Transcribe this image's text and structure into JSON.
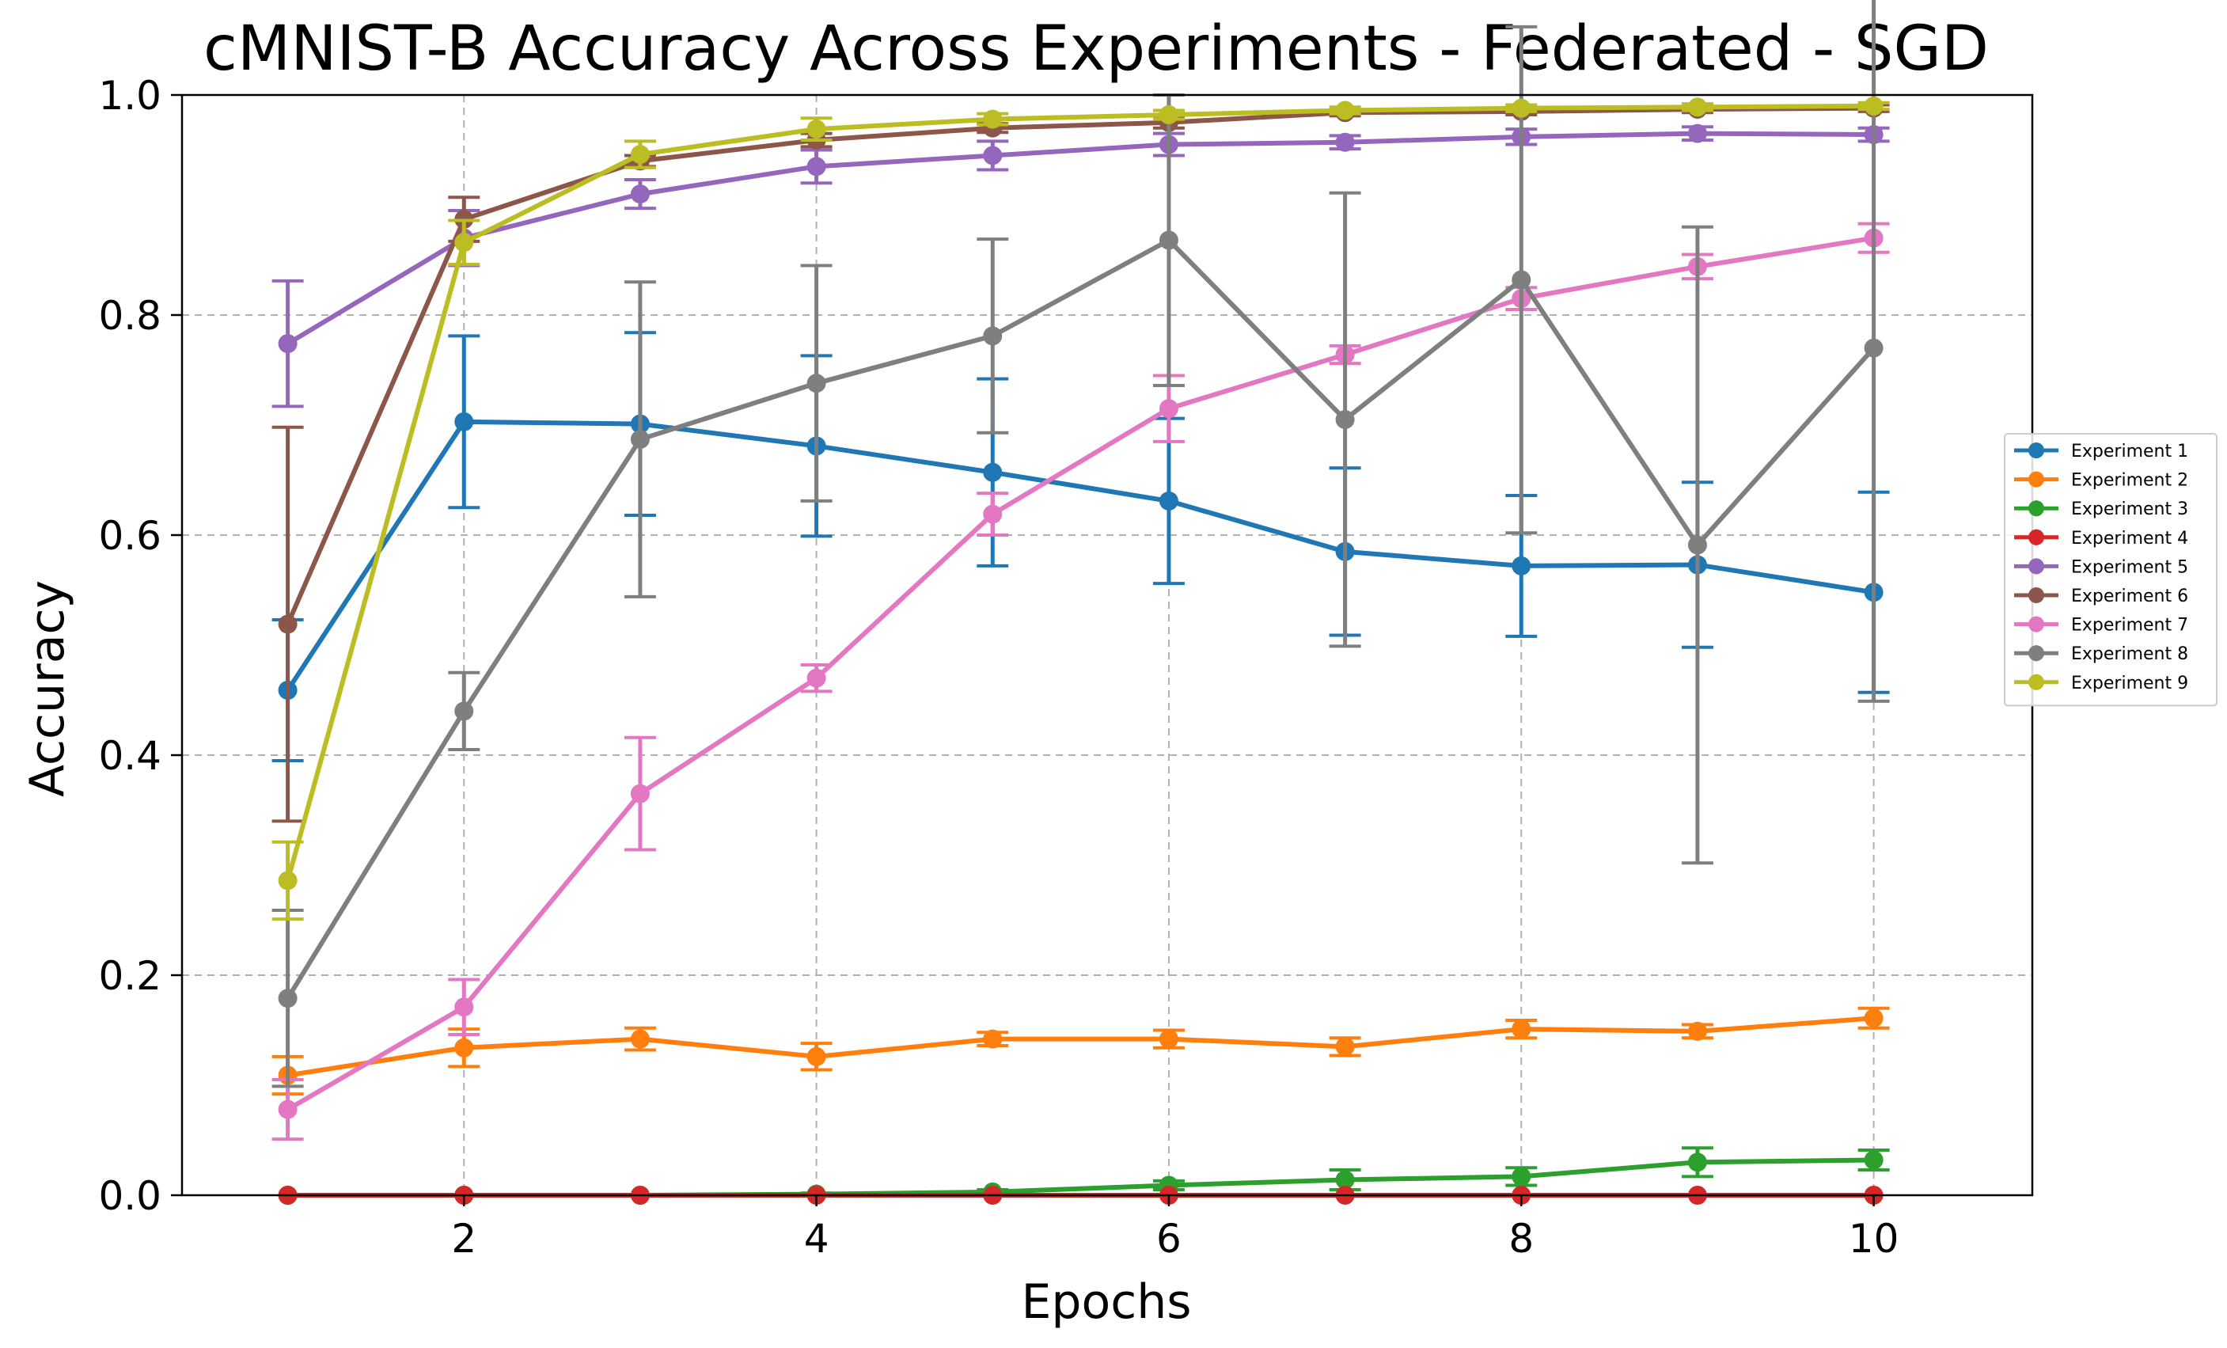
{
  "chart_data": {
    "type": "line",
    "title": "cMNIST-B Accuracy Across Experiments - Federated - SGD",
    "xlabel": "Epochs",
    "ylabel": "Accuracy",
    "xlim": [
      0.4,
      10.9
    ],
    "ylim": [
      0.0,
      1.0
    ],
    "grid": true,
    "legend_position": "right",
    "x": [
      1,
      2,
      3,
      4,
      5,
      6,
      7,
      8,
      9,
      10
    ],
    "x_ticks": [
      2,
      4,
      6,
      8,
      10
    ],
    "x_tick_labels": [
      "2",
      "4",
      "6",
      "8",
      "10"
    ],
    "y_ticks": [
      0.0,
      0.2,
      0.4,
      0.6,
      0.8,
      1.0
    ],
    "y_tick_labels": [
      "0.0",
      "0.2",
      "0.4",
      "0.6",
      "0.8",
      "1.0"
    ],
    "series": [
      {
        "name": "Experiment 1",
        "color": "#1f77b4",
        "values": [
          0.459,
          0.703,
          0.701,
          0.681,
          0.657,
          0.631,
          0.585,
          0.572,
          0.573,
          0.548
        ],
        "errors": [
          0.064,
          0.078,
          0.083,
          0.082,
          0.085,
          0.075,
          0.076,
          0.064,
          0.075,
          0.091
        ]
      },
      {
        "name": "Experiment 2",
        "color": "#ff7f0e",
        "values": [
          0.109,
          0.134,
          0.142,
          0.126,
          0.142,
          0.142,
          0.135,
          0.151,
          0.149,
          0.161
        ],
        "errors": [
          0.017,
          0.017,
          0.01,
          0.012,
          0.006,
          0.008,
          0.008,
          0.008,
          0.006,
          0.009
        ]
      },
      {
        "name": "Experiment 3",
        "color": "#2ca02c",
        "values": [
          0.0,
          0.0,
          0.0,
          0.001,
          0.003,
          0.009,
          0.014,
          0.017,
          0.03,
          0.032
        ],
        "errors": [
          0.0,
          0.0,
          0.0,
          0.001,
          0.002,
          0.004,
          0.009,
          0.008,
          0.013,
          0.009
        ]
      },
      {
        "name": "Experiment 4",
        "color": "#d62728",
        "values": [
          0.0,
          0.0,
          0.0,
          0.0,
          0.0,
          0.0,
          0.0,
          0.0,
          0.0,
          0.0
        ],
        "errors": [
          0.0,
          0.0,
          0.0,
          0.0,
          0.0,
          0.0,
          0.0,
          0.0,
          0.0,
          0.0
        ]
      },
      {
        "name": "Experiment 5",
        "color": "#9467bd",
        "values": [
          0.774,
          0.87,
          0.91,
          0.935,
          0.945,
          0.955,
          0.957,
          0.962,
          0.965,
          0.964
        ],
        "errors": [
          0.057,
          0.025,
          0.013,
          0.015,
          0.013,
          0.01,
          0.006,
          0.007,
          0.006,
          0.006
        ]
      },
      {
        "name": "Experiment 6",
        "color": "#8c564b",
        "values": [
          0.519,
          0.887,
          0.94,
          0.959,
          0.97,
          0.975,
          0.984,
          0.985,
          0.987,
          0.988
        ],
        "errors": [
          0.179,
          0.02,
          0.005,
          0.006,
          0.004,
          0.005,
          0.003,
          0.003,
          0.003,
          0.003
        ]
      },
      {
        "name": "Experiment 7",
        "color": "#e377c2",
        "values": [
          0.078,
          0.171,
          0.365,
          0.47,
          0.619,
          0.715,
          0.764,
          0.815,
          0.844,
          0.87
        ],
        "errors": [
          0.027,
          0.025,
          0.051,
          0.012,
          0.019,
          0.03,
          0.008,
          0.01,
          0.011,
          0.013
        ]
      },
      {
        "name": "Experiment 8",
        "color": "#7f7f7f",
        "values": [
          0.179,
          0.44,
          0.687,
          0.738,
          0.781,
          0.868,
          0.705,
          0.832,
          0.591,
          0.77
        ],
        "errors": [
          0.08,
          0.035,
          0.143,
          0.107,
          0.088,
          0.132,
          0.206,
          0.23,
          0.289,
          0.321
        ]
      },
      {
        "name": "Experiment 9",
        "color": "#bcbd22",
        "values": [
          0.286,
          0.866,
          0.946,
          0.969,
          0.978,
          0.982,
          0.986,
          0.988,
          0.989,
          0.99
        ],
        "errors": [
          0.035,
          0.02,
          0.012,
          0.01,
          0.005,
          0.004,
          0.003,
          0.003,
          0.003,
          0.003
        ]
      }
    ]
  }
}
